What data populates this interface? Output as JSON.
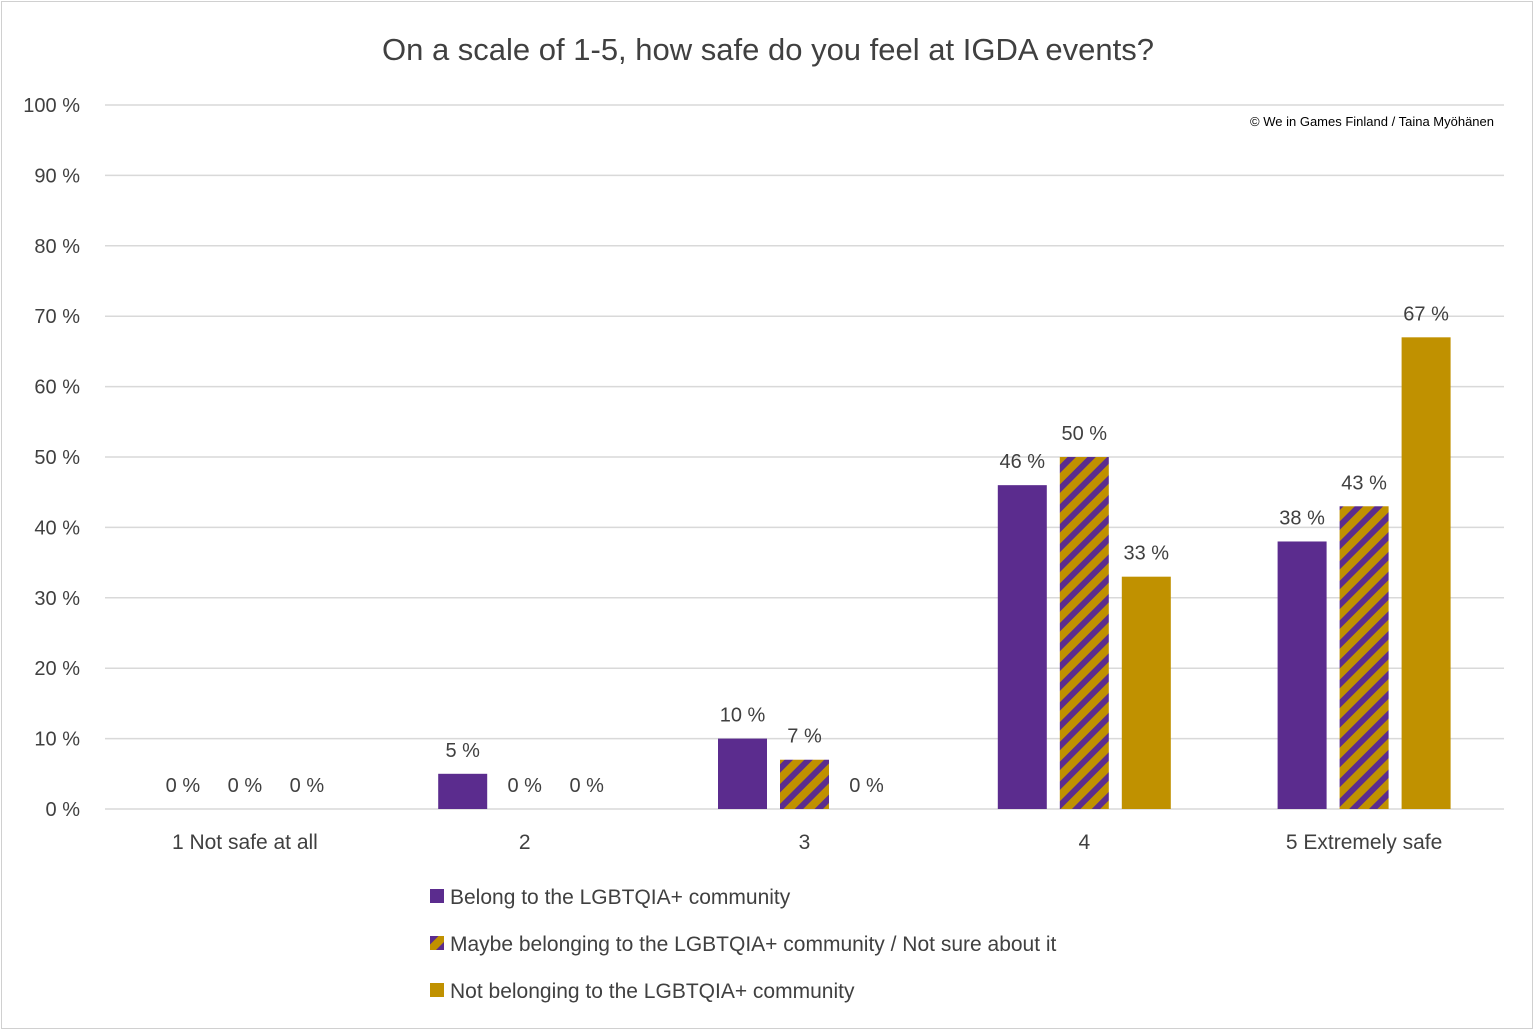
{
  "chart_data": {
    "type": "bar",
    "title": "On a scale of 1-5, how safe do you feel at IGDA events?",
    "credit": "© We in Games Finland / Taina Myöhänen",
    "categories": [
      "1 Not safe at all",
      "2",
      "3",
      "4",
      "5 Extremely safe"
    ],
    "y_ticks": [
      "0 %",
      "10 %",
      "20 %",
      "30 %",
      "40 %",
      "50 %",
      "60 %",
      "70 %",
      "80 %",
      "90 %",
      "100 %"
    ],
    "ylim": [
      0,
      100
    ],
    "grid": true,
    "legend_position": "bottom",
    "series": [
      {
        "name": "Belong to the LGBTQIA+ community",
        "values": [
          0,
          5,
          10,
          46,
          38
        ],
        "labels": [
          "0 %",
          "5 %",
          "10 %",
          "46 %",
          "38 %"
        ],
        "color": "#5b2c8e",
        "pattern": "solid"
      },
      {
        "name": "Maybe belonging to the LGBTQIA+ community / Not sure about it",
        "values": [
          0,
          0,
          7,
          50,
          43
        ],
        "labels": [
          "0 %",
          "0 %",
          "7 %",
          "50 %",
          "43 %"
        ],
        "color": "#c09100",
        "pattern_color": "#5b2c8e",
        "pattern": "diagonal-stripes"
      },
      {
        "name": "Not belonging to the LGBTQIA+ community",
        "values": [
          0,
          0,
          0,
          33,
          67
        ],
        "labels": [
          "0 %",
          "0 %",
          "0 %",
          "33 %",
          "67 %"
        ],
        "color": "#c09100",
        "pattern": "solid"
      }
    ]
  }
}
